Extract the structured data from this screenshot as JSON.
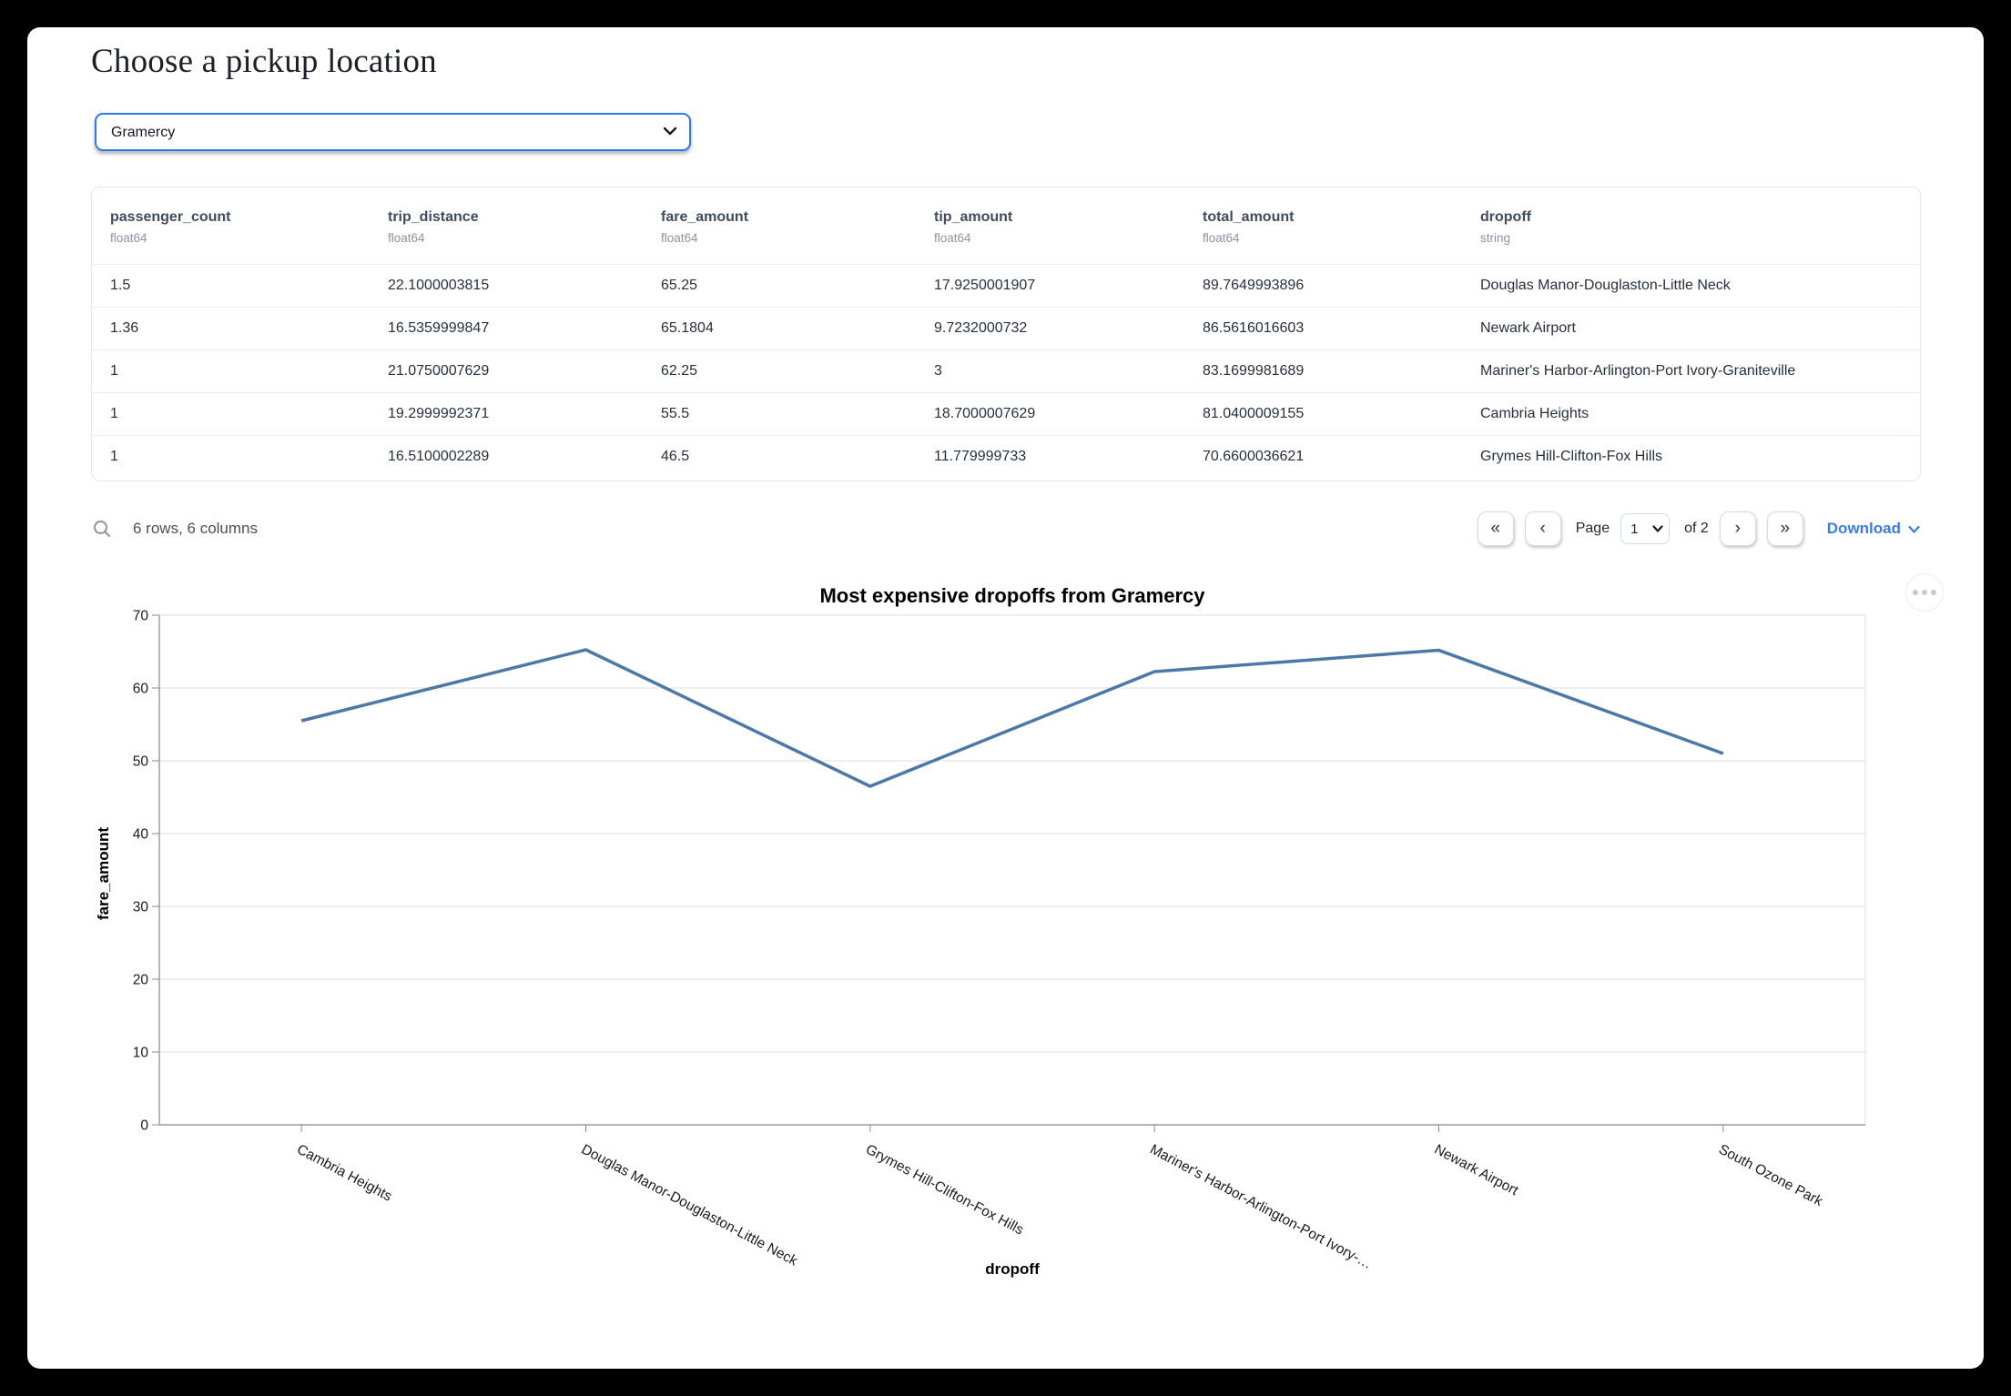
{
  "header": {
    "title": "Choose a pickup location"
  },
  "pickup_select": {
    "value": "Gramercy"
  },
  "table": {
    "columns": [
      {
        "name": "passenger_count",
        "dtype": "float64"
      },
      {
        "name": "trip_distance",
        "dtype": "float64"
      },
      {
        "name": "fare_amount",
        "dtype": "float64"
      },
      {
        "name": "tip_amount",
        "dtype": "float64"
      },
      {
        "name": "total_amount",
        "dtype": "float64"
      },
      {
        "name": "dropoff",
        "dtype": "string"
      }
    ],
    "rows": [
      [
        "1.5",
        "22.1000003815",
        "65.25",
        "17.9250001907",
        "89.7649993896",
        "Douglas Manor-Douglaston-Little Neck"
      ],
      [
        "1.36",
        "16.5359999847",
        "65.1804",
        "9.7232000732",
        "86.5616016603",
        "Newark Airport"
      ],
      [
        "1",
        "21.0750007629",
        "62.25",
        "3",
        "83.1699981689",
        "Mariner's Harbor-Arlington-Port Ivory-Graniteville"
      ],
      [
        "1",
        "19.2999992371",
        "55.5",
        "18.7000007629",
        "81.0400009155",
        "Cambria Heights"
      ],
      [
        "1",
        "16.5100002289",
        "46.5",
        "11.779999733",
        "70.6600036621",
        "Grymes Hill-Clifton-Fox Hills"
      ]
    ],
    "summary": "6 rows, 6 columns",
    "pagination": {
      "first_icon": "«",
      "prev_icon": "‹",
      "page_label": "Page",
      "current_page": "1",
      "of_label": "of 2",
      "next_icon": "›",
      "last_icon": "»"
    },
    "download_label": "Download"
  },
  "chart_data": {
    "type": "line",
    "title": "Most expensive dropoffs from Gramercy",
    "categories": [
      "Cambria Heights",
      "Douglas Manor-Douglaston-Little Neck",
      "Grymes Hill-Clifton-Fox Hills",
      "Mariner's Harbor-Arlington-Port Ivory-Graniteville",
      "Newark Airport",
      "South Ozone Park"
    ],
    "xtick_labels": [
      "Cambria Heights",
      "Douglas Manor-Douglaston-Little Neck",
      "Grymes Hill-Clifton-Fox Hills",
      "Mariner's Harbor-Arlington-Port Ivory-…",
      "Newark Airport",
      "South Ozone Park"
    ],
    "values": [
      55.5,
      65.25,
      46.5,
      62.25,
      65.1804,
      51
    ],
    "xlabel": "dropoff",
    "ylabel": "fare_amount",
    "ylim": [
      0,
      70
    ],
    "ytick_step": 10,
    "grid": true,
    "legend": "none",
    "line_color": "#4c78a8"
  },
  "colors": {
    "select_border": "#2b7ce9",
    "link_blue": "#3b7ce0",
    "grid_line": "#dddddd",
    "axis_domain": "#888888",
    "header_text": "#3f4b5f",
    "cell_text": "#25303f"
  }
}
